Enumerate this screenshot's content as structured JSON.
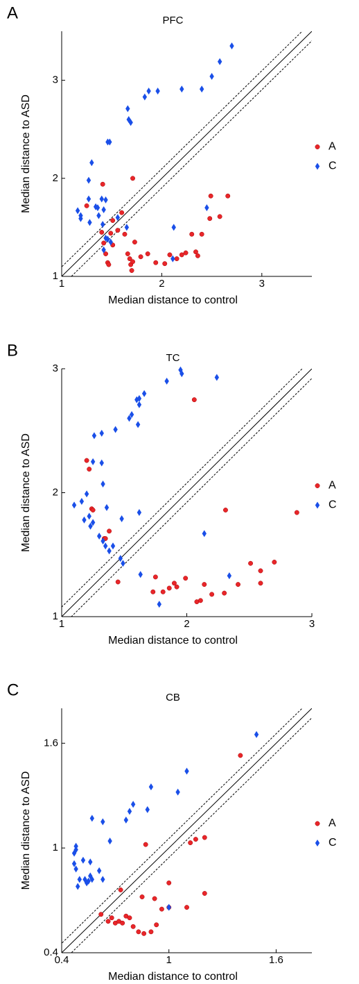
{
  "chart_data": [
    {
      "type": "scatter",
      "panel_label": "A",
      "title": "PFC",
      "x_label": "Median distance to control",
      "y_label": "Median distance to ASD",
      "xlim": [
        1,
        3.5
      ],
      "ylim": [
        1,
        3.5
      ],
      "xticks": [
        1,
        2,
        3
      ],
      "yticks": [
        1,
        2,
        3
      ],
      "series": [
        {
          "name": "A",
          "color": "#e8262a",
          "marker": "circle",
          "x": [
            1.25,
            1.4,
            1.41,
            1.42,
            1.44,
            1.46,
            1.47,
            1.49,
            1.51,
            1.51,
            1.56,
            1.6,
            1.63,
            1.66,
            1.68,
            1.69,
            1.7,
            1.71,
            1.71,
            1.73,
            1.79,
            1.86,
            1.94,
            2.03,
            2.08,
            2.15,
            2.2,
            2.24,
            2.3,
            2.34,
            2.36,
            2.4,
            2.48,
            2.49,
            2.58,
            2.66
          ],
          "values": [
            1.72,
            1.45,
            1.94,
            1.34,
            1.23,
            1.14,
            1.12,
            1.44,
            1.32,
            1.57,
            1.47,
            1.65,
            1.43,
            1.23,
            1.18,
            1.12,
            1.06,
            1.15,
            2.0,
            1.35,
            1.2,
            1.23,
            1.14,
            1.13,
            1.22,
            1.18,
            1.22,
            1.24,
            1.43,
            1.25,
            1.21,
            1.43,
            1.59,
            1.82,
            1.61,
            1.82
          ]
        },
        {
          "name": "C",
          "color": "#1a4fe8",
          "marker": "diamond",
          "x": [
            2.7,
            2.58,
            2.5,
            2.4,
            2.2,
            1.96,
            1.87,
            1.83,
            1.69,
            1.67,
            1.66,
            1.48,
            1.46,
            1.3,
            1.27,
            1.16,
            1.19,
            1.19,
            1.27,
            1.28,
            1.34,
            1.36,
            1.37,
            1.4,
            1.42,
            1.44,
            1.41,
            1.46,
            1.49,
            1.42,
            1.44,
            1.56,
            1.65,
            2.12,
            2.11,
            2.45
          ],
          "values": [
            3.35,
            3.19,
            3.04,
            2.91,
            2.91,
            2.89,
            2.89,
            2.83,
            2.57,
            2.6,
            2.71,
            2.37,
            2.37,
            2.16,
            1.98,
            1.67,
            1.62,
            1.59,
            1.79,
            1.55,
            1.71,
            1.7,
            1.62,
            1.79,
            1.68,
            1.78,
            1.53,
            1.38,
            1.35,
            1.27,
            1.39,
            1.6,
            1.5,
            1.5,
            1.18,
            1.7
          ]
        }
      ]
    },
    {
      "type": "scatter",
      "panel_label": "B",
      "title": "TC",
      "x_label": "Median distance to control",
      "y_label": "Median distance to ASD",
      "xlim": [
        1,
        3
      ],
      "ylim": [
        1,
        3
      ],
      "xticks": [
        1,
        2,
        3
      ],
      "yticks": [
        1,
        2,
        3
      ],
      "series": [
        {
          "name": "A",
          "color": "#e8262a",
          "marker": "circle",
          "x": [
            1.2,
            1.22,
            1.24,
            1.25,
            1.34,
            1.35,
            1.38,
            1.45,
            1.73,
            1.75,
            1.81,
            1.86,
            1.9,
            1.92,
            1.99,
            2.06,
            2.08,
            2.11,
            2.14,
            2.2,
            2.31,
            2.3,
            2.41,
            2.51,
            2.59,
            2.59,
            2.7,
            2.88
          ],
          "values": [
            2.26,
            2.19,
            1.87,
            1.86,
            1.63,
            1.63,
            1.69,
            1.28,
            1.2,
            1.32,
            1.2,
            1.23,
            1.27,
            1.24,
            1.31,
            2.75,
            1.12,
            1.13,
            1.26,
            1.18,
            1.86,
            1.19,
            1.26,
            1.43,
            1.37,
            1.27,
            1.44,
            1.84
          ]
        },
        {
          "name": "C",
          "color": "#1a4fe8",
          "marker": "diamond",
          "x": [
            2.24,
            1.96,
            1.95,
            1.84,
            1.66,
            1.62,
            1.6,
            1.62,
            1.56,
            1.54,
            1.61,
            1.43,
            1.32,
            1.26,
            1.25,
            1.32,
            1.33,
            1.2,
            1.36,
            1.1,
            1.16,
            1.18,
            1.22,
            1.23,
            1.25,
            1.3,
            1.33,
            1.35,
            1.41,
            1.38,
            1.48,
            1.47,
            1.49,
            1.62,
            1.63,
            1.78,
            2.14,
            2.34
          ],
          "values": [
            2.93,
            2.96,
            2.99,
            2.9,
            2.8,
            2.76,
            2.75,
            2.71,
            2.63,
            2.6,
            2.55,
            2.51,
            2.48,
            2.46,
            2.25,
            2.24,
            2.07,
            1.99,
            1.88,
            1.9,
            1.93,
            1.78,
            1.81,
            1.73,
            1.76,
            1.65,
            1.61,
            1.57,
            1.57,
            1.53,
            1.79,
            1.47,
            1.43,
            1.84,
            1.34,
            1.1,
            1.67,
            1.33
          ]
        }
      ]
    },
    {
      "type": "scatter",
      "panel_label": "C",
      "title": "CB",
      "x_label": "Median distance to control",
      "y_label": "Median distance to ASD",
      "xlim": [
        0.4,
        1.8
      ],
      "ylim": [
        0.4,
        1.8
      ],
      "xticks": [
        0.4,
        1,
        1.6
      ],
      "yticks": [
        0.4,
        1,
        1.6
      ],
      "series": [
        {
          "name": "A",
          "color": "#e8262a",
          "marker": "circle",
          "x": [
            1.4,
            1.15,
            1.12,
            1.2,
            0.87,
            0.85,
            0.73,
            0.92,
            1.0,
            1.0,
            0.96,
            1.1,
            1.2,
            0.62,
            0.66,
            0.68,
            0.7,
            0.72,
            0.74,
            0.76,
            0.78,
            0.8,
            0.83,
            0.86,
            0.9,
            0.93
          ],
          "values": [
            1.53,
            1.05,
            1.03,
            1.06,
            1.02,
            0.72,
            0.76,
            0.71,
            0.8,
            0.66,
            0.65,
            0.66,
            0.74,
            0.62,
            0.58,
            0.6,
            0.57,
            0.58,
            0.57,
            0.61,
            0.6,
            0.55,
            0.52,
            0.51,
            0.52,
            0.56
          ]
        },
        {
          "name": "C",
          "color": "#1a4fe8",
          "marker": "diamond",
          "x": [
            1.49,
            1.1,
            0.9,
            1.05,
            0.8,
            0.78,
            0.88,
            0.57,
            0.76,
            0.63,
            0.67,
            0.48,
            0.48,
            0.47,
            0.52,
            0.56,
            0.47,
            0.48,
            0.56,
            0.57,
            0.55,
            0.61,
            0.63,
            0.53,
            0.5,
            0.49,
            0.54,
            1.0
          ],
          "values": [
            1.65,
            1.44,
            1.35,
            1.32,
            1.25,
            1.21,
            1.22,
            1.17,
            1.16,
            1.15,
            1.04,
            1.01,
            0.99,
            0.97,
            0.93,
            0.92,
            0.91,
            0.88,
            0.84,
            0.82,
            0.81,
            0.87,
            0.82,
            0.82,
            0.82,
            0.78,
            0.8,
            0.66
          ]
        }
      ]
    }
  ]
}
